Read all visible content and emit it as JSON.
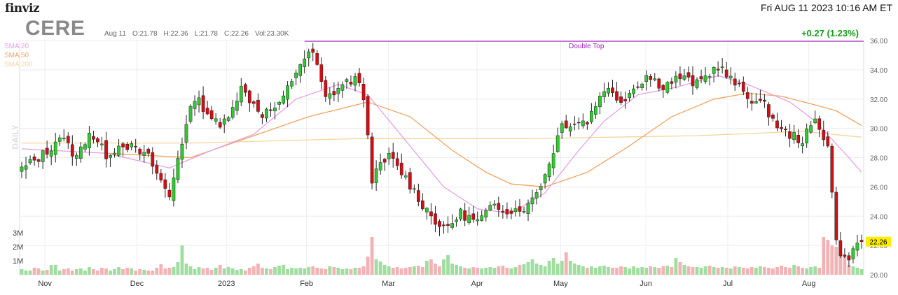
{
  "header": {
    "brand": "finviz",
    "datetime": "Fri AUG 11 2023 10:16 AM ET",
    "ticker": "CERE",
    "date": "Aug 11",
    "open": "O:21.78",
    "high": "H:22.36",
    "low": "L:21.78",
    "close": "C:22.26",
    "volume": "Vol:23.30K",
    "change": "+0.27 (1.23%)"
  },
  "legend": {
    "sma20": "SMA 20",
    "sma50": "SMA 50",
    "sma200": "SMA 200"
  },
  "colors": {
    "up": "#2ecc2e",
    "down": "#d40d12",
    "sma20": "#e4a0e8",
    "sma50": "#f2a35e",
    "sma200": "#f5d59a",
    "double_top": "#a020c0",
    "last_price_bg": "#ffee00"
  },
  "chart_data": {
    "type": "candlestick",
    "timeframe_label": "DAILY",
    "ylim": [
      20,
      36
    ],
    "y_ticks": [
      "20.00",
      "22.00",
      "24.00",
      "26.00",
      "28.00",
      "30.00",
      "32.00",
      "34.00",
      "36.00"
    ],
    "volume_ticks": [
      "1M",
      "2M",
      "3M"
    ],
    "x_labels": [
      "Nov",
      "Dec",
      "2023",
      "Feb",
      "Mar",
      "Apr",
      "May",
      "Jun",
      "Jul",
      "Aug"
    ],
    "last_price": "22.26",
    "annotation": {
      "label": "Double Top",
      "level": 35.95
    },
    "anchors": [
      [
        0,
        27.2
      ],
      [
        6,
        28.4
      ],
      [
        9,
        29.5
      ],
      [
        13,
        28.0
      ],
      [
        16,
        29.8
      ],
      [
        20,
        28.2
      ],
      [
        24,
        29.0
      ],
      [
        30,
        28.0
      ],
      [
        35,
        25.3
      ],
      [
        37,
        28.1
      ],
      [
        41,
        32.2
      ],
      [
        47,
        30.0
      ],
      [
        52,
        32.7
      ],
      [
        57,
        31.0
      ],
      [
        61,
        31.5
      ],
      [
        66,
        34.5
      ],
      [
        69,
        35.2
      ],
      [
        72,
        32.0
      ],
      [
        76,
        33.0
      ],
      [
        79,
        33.4
      ],
      [
        81,
        32.2
      ],
      [
        83,
        26.6
      ],
      [
        87,
        28.1
      ],
      [
        91,
        26.6
      ],
      [
        95,
        24.8
      ],
      [
        100,
        23.0
      ],
      [
        104,
        24.2
      ],
      [
        108,
        23.6
      ],
      [
        112,
        24.7
      ],
      [
        116,
        24.4
      ],
      [
        120,
        24.7
      ],
      [
        124,
        26.8
      ],
      [
        128,
        30.3
      ],
      [
        134,
        30.5
      ],
      [
        138,
        32.8
      ],
      [
        142,
        31.9
      ],
      [
        148,
        33.6
      ],
      [
        152,
        32.9
      ],
      [
        156,
        33.5
      ],
      [
        160,
        33.0
      ],
      [
        165,
        34.3
      ],
      [
        168,
        33.3
      ],
      [
        172,
        32.2
      ],
      [
        176,
        31.5
      ],
      [
        180,
        29.8
      ],
      [
        185,
        29.2
      ],
      [
        188,
        30.5
      ],
      [
        191,
        29.0
      ],
      [
        193,
        22.2
      ],
      [
        195,
        21.0
      ],
      [
        199,
        22.3
      ]
    ],
    "volumes": [
      0.4,
      0.3,
      0.3,
      0.5,
      0.45,
      0.3,
      0.35,
      0.7,
      0.7,
      0.3,
      0.4,
      0.45,
      0.3,
      0.4,
      0.45,
      0.3,
      0.55,
      0.4,
      0.3,
      0.5,
      0.45,
      0.3,
      0.4,
      0.55,
      0.4,
      0.5,
      0.45,
      0.3,
      0.4,
      0.35,
      0.3,
      0.3,
      0.5,
      0.75,
      0.45,
      0.5,
      0.55,
      0.9,
      2.1,
      0.8,
      0.6,
      0.4,
      0.55,
      0.45,
      0.5,
      0.35,
      0.5,
      0.7,
      0.45,
      0.55,
      0.45,
      0.35,
      0.4,
      0.3,
      0.5,
      0.6,
      0.8,
      0.5,
      0.45,
      0.4,
      0.55,
      0.65,
      0.7,
      0.4,
      0.5,
      0.45,
      0.5,
      0.45,
      0.55,
      0.6,
      0.5,
      0.45,
      0.4,
      0.6,
      0.55,
      0.5,
      0.4,
      0.45,
      0.4,
      0.5,
      0.5,
      0.6,
      1.3,
      2.7,
      1.1,
      0.95,
      0.7,
      0.6,
      0.5,
      0.55,
      0.45,
      0.5,
      0.55,
      0.6,
      0.65,
      0.55,
      1.0,
      1.1,
      0.8,
      0.6,
      1.1,
      1.4,
      0.8,
      0.7,
      0.6,
      0.5,
      0.45,
      0.55,
      0.5,
      0.45,
      0.5,
      0.55,
      0.5,
      0.6,
      0.65,
      0.5,
      0.45,
      0.55,
      0.7,
      0.75,
      0.9,
      1.1,
      0.8,
      0.7,
      0.6,
      1.0,
      1.2,
      0.8,
      1.0,
      1.6,
      1.0,
      0.8,
      0.7,
      0.6,
      0.5,
      0.6,
      0.5,
      0.6,
      0.65,
      0.55,
      0.5,
      0.5,
      0.6,
      0.55,
      0.45,
      0.6,
      0.5,
      0.55,
      0.5,
      0.6,
      0.55,
      0.5,
      0.6,
      0.65,
      0.55,
      1.2,
      0.9,
      0.7,
      0.6,
      0.55,
      0.55,
      0.5,
      0.6,
      0.65,
      0.55,
      0.5,
      0.55,
      0.5,
      0.45,
      0.6,
      0.55,
      0.5,
      0.45,
      0.55,
      0.5,
      0.6,
      0.55,
      0.5,
      0.45,
      0.55,
      0.65,
      0.55,
      0.5,
      0.7,
      0.6,
      0.5,
      0.45,
      0.55,
      0.6,
      0.5,
      2.7,
      2.5,
      2.1,
      2.0,
      1.6,
      1.4,
      0.7,
      0.6,
      0.5,
      0.4
    ],
    "sma20": [
      [
        0,
        28.6
      ],
      [
        20,
        28.3
      ],
      [
        35,
        27.3
      ],
      [
        45,
        28.5
      ],
      [
        55,
        29.6
      ],
      [
        65,
        32.0
      ],
      [
        75,
        33.0
      ],
      [
        82,
        32.3
      ],
      [
        90,
        29.5
      ],
      [
        100,
        26.0
      ],
      [
        108,
        24.5
      ],
      [
        116,
        24.2
      ],
      [
        124,
        25.6
      ],
      [
        132,
        28.5
      ],
      [
        138,
        30.5
      ],
      [
        146,
        32.3
      ],
      [
        155,
        32.8
      ],
      [
        165,
        33.6
      ],
      [
        172,
        33.0
      ],
      [
        182,
        31.8
      ],
      [
        188,
        30.5
      ],
      [
        196,
        28.0
      ],
      [
        199,
        27.0
      ]
    ],
    "sma50": [
      [
        20,
        28.3
      ],
      [
        40,
        28.0
      ],
      [
        55,
        29.5
      ],
      [
        68,
        30.8
      ],
      [
        82,
        31.8
      ],
      [
        92,
        30.8
      ],
      [
        102,
        28.5
      ],
      [
        110,
        27.0
      ],
      [
        116,
        26.2
      ],
      [
        124,
        26.0
      ],
      [
        134,
        27.0
      ],
      [
        144,
        28.8
      ],
      [
        154,
        30.8
      ],
      [
        164,
        32.0
      ],
      [
        172,
        32.4
      ],
      [
        180,
        32.2
      ],
      [
        188,
        31.6
      ],
      [
        193,
        31.2
      ],
      [
        199,
        30.2
      ]
    ],
    "sma200": [
      [
        0,
        29.0
      ],
      [
        40,
        29.0
      ],
      [
        80,
        29.3
      ],
      [
        120,
        29.3
      ],
      [
        160,
        29.5
      ],
      [
        185,
        29.8
      ],
      [
        199,
        29.4
      ]
    ]
  }
}
